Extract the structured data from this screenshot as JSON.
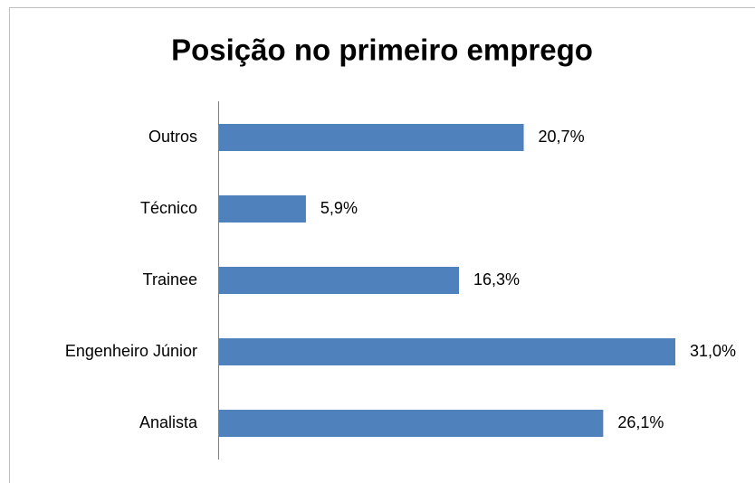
{
  "chart_data": {
    "type": "barh",
    "title": "Posição no primeiro emprego",
    "categories": [
      "Outros",
      "Técnico",
      "Trainee",
      "Engenheiro Júnior",
      "Analista"
    ],
    "values": [
      20.7,
      5.9,
      16.3,
      31.0,
      26.1
    ],
    "value_labels": [
      "20,7%",
      "5,9%",
      "16,3%",
      "31,0%",
      "26,1%"
    ],
    "color": "#4f81bd"
  }
}
